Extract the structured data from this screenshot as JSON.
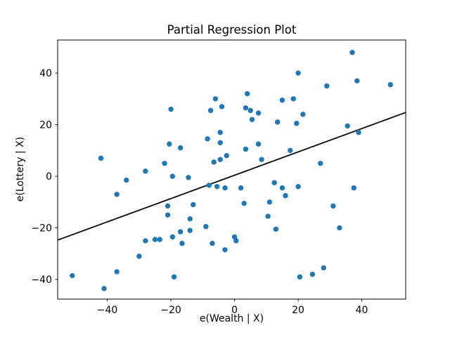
{
  "chart_data": {
    "type": "scatter",
    "title": "Partial Regression Plot",
    "xlabel": "e(Wealth | X)",
    "ylabel": "e(Lottery | X)",
    "xlim": [
      -55.6,
      53.8
    ],
    "ylim": [
      -47.6,
      52.8
    ],
    "xticks": [
      -40,
      -20,
      0,
      20,
      40
    ],
    "xtick_labels": [
      "−40",
      "−20",
      "0",
      "20",
      "40"
    ],
    "yticks": [
      -40,
      -20,
      0,
      20,
      40
    ],
    "ytick_labels": [
      "−40",
      "−20",
      "0",
      "20",
      "40"
    ],
    "grid": false,
    "legend": "none",
    "marker_color": "#1f77b4",
    "line_color": "#000000",
    "regression_line": {
      "slope": 0.452,
      "intercept": 0.4
    },
    "series": [
      {
        "name": "residual-points",
        "points": [
          [
            37,
            48
          ],
          [
            20,
            40
          ],
          [
            38.5,
            37
          ],
          [
            49,
            35.5
          ],
          [
            29,
            35
          ],
          [
            4,
            32
          ],
          [
            -6,
            30
          ],
          [
            18.5,
            30
          ],
          [
            15,
            29.5
          ],
          [
            -4,
            27
          ],
          [
            3.5,
            26.5
          ],
          [
            -20,
            26
          ],
          [
            -7.5,
            25.5
          ],
          [
            5,
            25.5
          ],
          [
            7.5,
            24.5
          ],
          [
            21.5,
            24
          ],
          [
            5.5,
            22
          ],
          [
            13.5,
            21
          ],
          [
            19.5,
            20.5
          ],
          [
            35.5,
            19.5
          ],
          [
            39,
            17
          ],
          [
            -4.5,
            17
          ],
          [
            -8.5,
            14.5
          ],
          [
            -4.5,
            13
          ],
          [
            -20.5,
            12.5
          ],
          [
            -17,
            11
          ],
          [
            7.5,
            12.5
          ],
          [
            3.5,
            10.5
          ],
          [
            17.5,
            10
          ],
          [
            -2.5,
            8
          ],
          [
            8.5,
            6.5
          ],
          [
            -6.5,
            5.5
          ],
          [
            -4.5,
            6.5
          ],
          [
            -22,
            5
          ],
          [
            27,
            5
          ],
          [
            -42,
            7
          ],
          [
            -28,
            2
          ],
          [
            -34,
            -1.5
          ],
          [
            -19.5,
            0
          ],
          [
            -14.5,
            -0.5
          ],
          [
            -8,
            -3.5
          ],
          [
            -5.5,
            -4
          ],
          [
            -3,
            -4.5
          ],
          [
            2,
            -4.5
          ],
          [
            12.5,
            -2.5
          ],
          [
            15,
            -4.5
          ],
          [
            20,
            -4
          ],
          [
            37.5,
            -4.5
          ],
          [
            -37,
            -7
          ],
          [
            16,
            -7.5
          ],
          [
            -13,
            -11
          ],
          [
            3,
            -10.5
          ],
          [
            11,
            -10
          ],
          [
            31,
            -11.5
          ],
          [
            -21,
            -11.5
          ],
          [
            -21,
            -15
          ],
          [
            -14,
            -16.5
          ],
          [
            10.5,
            -15.5
          ],
          [
            -9,
            -19.5
          ],
          [
            -17,
            -21.5
          ],
          [
            -14,
            -21
          ],
          [
            13,
            -20.5
          ],
          [
            33,
            -20
          ],
          [
            -28,
            -25
          ],
          [
            -25,
            -24.5
          ],
          [
            -23.5,
            -24.5
          ],
          [
            -19.5,
            -23.5
          ],
          [
            -16.5,
            -26
          ],
          [
            -7,
            -26
          ],
          [
            0,
            -23.5
          ],
          [
            0.5,
            -25
          ],
          [
            -3,
            -28.5
          ],
          [
            -30,
            -31
          ],
          [
            -37,
            -37
          ],
          [
            -51,
            -38.5
          ],
          [
            -41,
            -43.5
          ],
          [
            -19,
            -39
          ],
          [
            20.5,
            -39
          ],
          [
            24.5,
            -38
          ],
          [
            28,
            -35.5
          ]
        ]
      }
    ]
  }
}
